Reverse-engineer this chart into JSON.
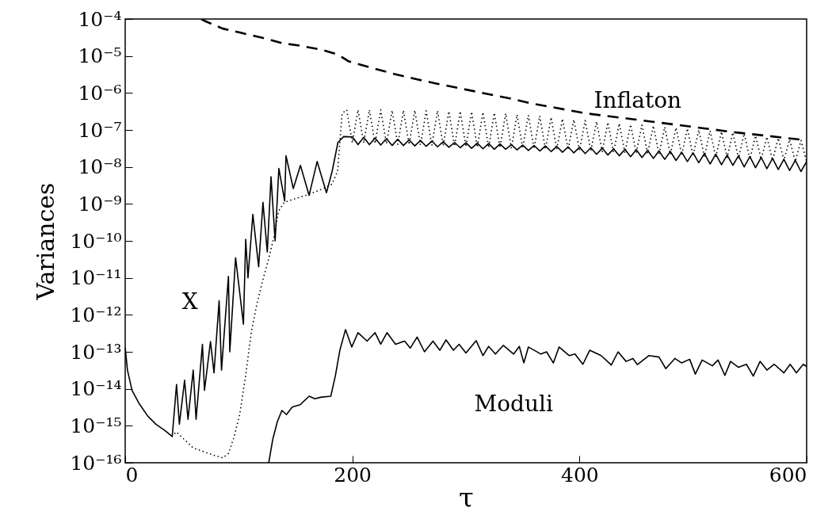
{
  "chart_data": {
    "type": "line",
    "xlabel": "τ",
    "ylabel": "Variances",
    "log": true,
    "grid": false,
    "marker": "none",
    "xlim": [
      0,
      600
    ],
    "ylim": [
      1e-16,
      0.0001
    ],
    "xticks": [
      0,
      200,
      400,
      600
    ],
    "yticks": [
      {
        "value": 1e-16,
        "label": "10⁻¹⁶"
      },
      {
        "value": 1e-15,
        "label": "10⁻¹⁵"
      },
      {
        "value": 1e-14,
        "label": "10⁻¹⁴"
      },
      {
        "value": 1e-13,
        "label": "10⁻¹³"
      },
      {
        "value": 1e-12,
        "label": "10⁻¹²"
      },
      {
        "value": 1e-11,
        "label": "10⁻¹¹"
      },
      {
        "value": 1e-10,
        "label": "10⁻¹⁰"
      },
      {
        "value": 1e-09,
        "label": "10⁻⁹"
      },
      {
        "value": 1e-08,
        "label": "10⁻⁸"
      },
      {
        "value": 1e-07,
        "label": "10⁻⁷"
      },
      {
        "value": 1e-06,
        "label": "10⁻⁶"
      },
      {
        "value": 1e-05,
        "label": "10⁻⁵"
      },
      {
        "value": 0.0001,
        "label": "10⁻⁴"
      }
    ],
    "annotations": [
      "Inflaton",
      "X",
      "Moduli"
    ],
    "series": [
      {
        "color": "#000000",
        "line_style": "dashed",
        "x": [
          67,
          70.6,
          86,
          101,
          121,
          139,
          154,
          172,
          187,
          197,
          218,
          238,
          258,
          274,
          302,
          338,
          358,
          406,
          447,
          498,
          536,
          597,
          600
        ],
        "values": [
          0.0001,
          8.7e-05,
          5.5e-05,
          4.3e-05,
          3.1e-05,
          2.2e-05,
          1.9e-05,
          1.5e-05,
          1.1e-05,
          7.1e-06,
          4.7e-06,
          3.2e-06,
          2.3e-06,
          1.8e-06,
          1.2e-06,
          7.2e-07,
          5.2e-07,
          2.8e-07,
          1.95e-07,
          1.23e-07,
          8.7e-08,
          5.4e-08,
          5.3e-08
        ]
      },
      {
        "color": "#000000",
        "line_style": "dotted",
        "x": [
          41,
          45,
          60,
          78,
          86,
          91,
          96,
          101,
          106,
          111,
          116,
          121,
          126,
          131.5,
          135,
          140,
          147,
          159,
          172,
          182,
          187,
          191,
          195,
          200,
          205,
          210,
          215,
          220,
          225,
          230,
          235,
          240,
          245,
          250,
          255,
          260,
          265,
          270,
          275,
          280,
          285,
          290,
          295,
          300,
          305,
          310,
          315,
          320,
          325,
          330,
          335,
          340,
          345,
          350,
          355,
          360,
          365,
          370,
          375,
          380,
          385,
          390,
          395,
          400,
          405,
          410,
          415,
          420,
          425,
          430,
          435,
          440,
          445,
          450,
          455,
          460,
          465,
          470,
          475,
          480,
          485,
          490,
          495,
          500,
          505,
          510,
          515,
          520,
          525,
          530,
          535,
          540,
          545,
          550,
          555,
          560,
          565,
          570,
          575,
          580,
          585,
          590,
          595,
          600
        ],
        "values": [
          5.1e-16,
          6.8e-16,
          2.5e-16,
          1.6e-16,
          1.35e-16,
          1.8e-16,
          5.1e-16,
          2.2e-15,
          2.2e-14,
          3.3e-13,
          2e-12,
          8.3e-12,
          3e-11,
          1.5e-10,
          6.3e-10,
          1.1e-09,
          1.3e-09,
          1.7e-09,
          2.4e-09,
          3.4e-09,
          7.6e-09,
          2.8e-07,
          3.5e-07,
          4.5e-08,
          3.5e-07,
          4.4e-08,
          3.5e-07,
          4.3e-08,
          3.5e-07,
          4.2e-08,
          3.4e-07,
          4.1e-08,
          3.4e-07,
          4e-08,
          3.4e-07,
          3.9e-08,
          3.3e-07,
          3.8e-08,
          3.3e-07,
          3.7e-08,
          3.2e-07,
          3.6e-08,
          3.2e-07,
          3.5e-08,
          3.1e-07,
          3.4e-08,
          3e-07,
          3.3e-08,
          2.9e-07,
          3.3e-08,
          2.8e-07,
          3.2e-08,
          2.6e-07,
          3.2e-08,
          2.5e-07,
          3.1e-08,
          2.4e-07,
          3e-08,
          2.2e-07,
          3e-08,
          2e-07,
          2.9e-08,
          1.9e-07,
          2.8e-08,
          1.8e-07,
          2.7e-08,
          1.7e-07,
          2.6e-08,
          1.6e-07,
          2.5e-08,
          1.5e-07,
          2.4e-08,
          1.4e-07,
          2.4e-08,
          1.35e-07,
          2.3e-08,
          1.3e-07,
          2.2e-08,
          1.2e-07,
          2.2e-08,
          1.15e-07,
          2.1e-08,
          1.1e-07,
          2e-08,
          1e-07,
          1.9e-08,
          9.5e-08,
          1.8e-08,
          9e-08,
          1.8e-08,
          8.5e-08,
          1.7e-08,
          8e-08,
          1.6e-08,
          7e-08,
          1.6e-08,
          6.5e-08,
          1.5e-08,
          6e-08,
          1.5e-08,
          5.5e-08,
          1.4e-08,
          5.2e-08,
          1.4e-08
        ]
      },
      {
        "color": "#000000",
        "line_style": "solid",
        "x": [
          0,
          2,
          6,
          12,
          20,
          27,
          35,
          41.4,
          45.2,
          47.7,
          52.3,
          55.3,
          59.9,
          62.4,
          68,
          69.8,
          75.1,
          78.2,
          82.7,
          84.8,
          90.9,
          92.1,
          97.2,
          104.1,
          106.1,
          108.1,
          112.4,
          117.5,
          121.3,
          125.1,
          128.4,
          132,
          135.3,
          140.4,
          141.6,
          148,
          154.3,
          161.9,
          169,
          177.2,
          182.2,
          187.3,
          192.4,
          200,
          205,
          210,
          215,
          220,
          225,
          230,
          235,
          240,
          245,
          250,
          255,
          260,
          265,
          270,
          275,
          280,
          285,
          290,
          295,
          300,
          305,
          310,
          315,
          320,
          325,
          330,
          335,
          340,
          345,
          350,
          355,
          360,
          365,
          370,
          375,
          380,
          385,
          390,
          395,
          400,
          405,
          410,
          415,
          420,
          425,
          430,
          435,
          440,
          445,
          450,
          455,
          460,
          465,
          470,
          475,
          480,
          485,
          490,
          495,
          500,
          505,
          510,
          515,
          520,
          525,
          530,
          535,
          540,
          545,
          550,
          555,
          560,
          565,
          570,
          575,
          580,
          585,
          590,
          595,
          600
        ],
        "values": [
          1.3e-13,
          3.2e-14,
          9.1e-15,
          4.1e-15,
          1.8e-15,
          1.1e-15,
          7.4e-16,
          5.1e-16,
          1.3e-14,
          1.1e-15,
          1.7e-14,
          1.5e-15,
          3.2e-14,
          1.5e-15,
          1.6e-13,
          9.1e-15,
          1.9e-13,
          2.7e-14,
          2.4e-12,
          3.2e-14,
          1.1e-11,
          1e-13,
          3.5e-11,
          5.6e-13,
          1.1e-10,
          1e-11,
          5.2e-10,
          2e-11,
          1.1e-09,
          5e-11,
          5.4e-09,
          1e-10,
          9.1e-09,
          1.2e-09,
          2e-08,
          2.6e-09,
          1.1e-08,
          1.7e-09,
          1.4e-08,
          2e-09,
          7.6e-09,
          4.6e-08,
          6.6e-08,
          6.5e-08,
          4e-08,
          6.3e-08,
          4e-08,
          6e-08,
          3.9e-08,
          5.8e-08,
          3.8e-08,
          5.6e-08,
          3.8e-08,
          5.4e-08,
          3.7e-08,
          5.2e-08,
          3.6e-08,
          5e-08,
          3.5e-08,
          4.8e-08,
          3.4e-08,
          4.6e-08,
          3.3e-08,
          4.5e-08,
          3.2e-08,
          4.4e-08,
          3.1e-08,
          4.3e-08,
          3e-08,
          4.2e-08,
          3e-08,
          4e-08,
          2.9e-08,
          3.9e-08,
          2.8e-08,
          3.8e-08,
          2.7e-08,
          3.7e-08,
          2.6e-08,
          3.6e-08,
          2.5e-08,
          3.5e-08,
          2.4e-08,
          3.4e-08,
          2.3e-08,
          3.3e-08,
          2.2e-08,
          3.2e-08,
          2.1e-08,
          3.1e-08,
          2e-08,
          3e-08,
          1.9e-08,
          2.9e-08,
          1.8e-08,
          2.8e-08,
          1.7e-08,
          2.7e-08,
          1.6e-08,
          2.6e-08,
          1.5e-08,
          2.5e-08,
          1.4e-08,
          2.4e-08,
          1.3e-08,
          2.3e-08,
          1.2e-08,
          2.2e-08,
          1.15e-08,
          2.1e-08,
          1.1e-08,
          2e-08,
          1e-08,
          1.9e-08,
          9.5e-09,
          1.8e-08,
          9e-09,
          1.7e-08,
          8.5e-09,
          1.6e-08,
          8e-09,
          1.5e-08,
          7.5e-09,
          1.4e-08
        ]
      },
      {
        "color": "#000000",
        "line_style": "solid",
        "x": [
          126.4,
          130,
          134,
          138,
          142,
          147,
          154,
          162,
          167,
          172,
          181,
          185,
          189,
          194,
          199.5,
          205,
          213,
          220,
          225,
          230.5,
          238,
          246,
          251,
          257,
          263.5,
          271,
          277,
          282.5,
          289,
          294,
          300,
          309,
          315,
          320,
          326,
          333,
          342,
          347,
          351,
          355,
          366,
          371,
          377,
          382,
          391,
          396,
          403,
          409,
          419,
          428,
          434,
          441,
          447,
          451,
          461,
          470,
          476,
          484,
          490,
          497,
          502,
          508,
          517,
          522,
          528,
          533,
          540,
          547,
          553,
          559,
          565,
          571.5,
          580,
          585.5,
          591,
          597,
          600
        ],
        "values": [
          1e-16,
          4.4e-16,
          1.3e-15,
          2.6e-15,
          2e-15,
          3.2e-15,
          3.7e-15,
          6.3e-15,
          5.4e-15,
          5.9e-15,
          6.3e-15,
          2.2e-14,
          1.1e-13,
          4e-13,
          1.35e-13,
          3.3e-13,
          1.95e-13,
          3.3e-13,
          1.6e-13,
          3.3e-13,
          1.6e-13,
          1.95e-13,
          1.26e-13,
          2.5e-13,
          1e-13,
          1.95e-13,
          1.1e-13,
          2.1e-13,
          1.1e-13,
          1.6e-13,
          9.3e-14,
          2e-13,
          7.9e-14,
          1.4e-13,
          8.7e-14,
          1.5e-13,
          8.7e-14,
          1.4e-13,
          5e-14,
          1.35e-13,
          8.7e-14,
          1e-13,
          5e-14,
          1.35e-13,
          7.9e-14,
          8.7e-14,
          4.6e-14,
          1.1e-13,
          7.9e-14,
          4.4e-14,
          1e-13,
          5.5e-14,
          6.6e-14,
          4.5e-14,
          7.9e-14,
          7.2e-14,
          3.5e-14,
          6.6e-14,
          5e-14,
          6.3e-14,
          2.5e-14,
          6e-14,
          4.2e-14,
          6e-14,
          2.3e-14,
          5.5e-14,
          3.8e-14,
          4.6e-14,
          2.2e-14,
          5.5e-14,
          3.2e-14,
          4.6e-14,
          2.7e-14,
          4.6e-14,
          2.7e-14,
          4.6e-14,
          4e-14
        ]
      }
    ]
  }
}
